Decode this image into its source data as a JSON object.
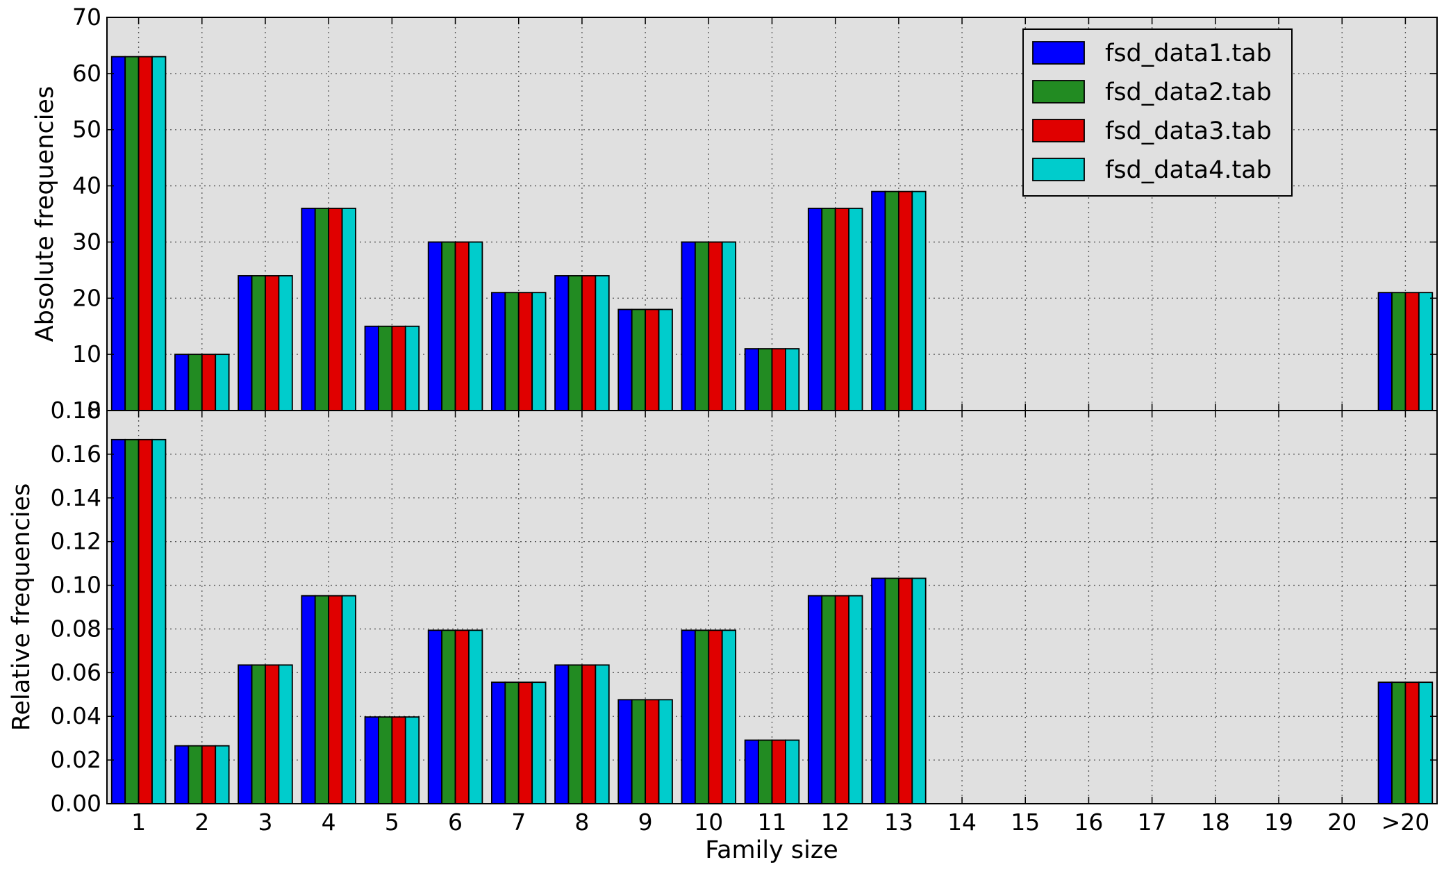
{
  "chart_data": {
    "type": "bar",
    "xlabel": "Family size",
    "categories": [
      "1",
      "2",
      "3",
      "4",
      "5",
      "6",
      "7",
      "8",
      "9",
      "10",
      "11",
      "12",
      "13",
      "14",
      "15",
      "16",
      "17",
      "18",
      "19",
      "20",
      ">20"
    ],
    "series_names": [
      "fsd_data1.tab",
      "fsd_data2.tab",
      "fsd_data3.tab",
      "fsd_data4.tab"
    ],
    "colors": [
      "#0000ff",
      "#228b22",
      "#e00000",
      "#00cccc"
    ],
    "background": "#e0e0e0",
    "grid": true,
    "legend_position": "top-right",
    "panels": [
      {
        "ylabel": "Absolute frequencies",
        "ylim": [
          0,
          70
        ],
        "yticks": [
          0,
          10,
          20,
          30,
          40,
          50,
          60,
          70
        ],
        "ytick_labels": [
          "0",
          "10",
          "20",
          "30",
          "40",
          "50",
          "60",
          "70"
        ],
        "series": [
          {
            "name": "fsd_data1.tab",
            "values": [
              63,
              10,
              24,
              36,
              15,
              30,
              21,
              24,
              18,
              30,
              11,
              36,
              39,
              0,
              0,
              0,
              0,
              0,
              0,
              0,
              21
            ]
          },
          {
            "name": "fsd_data2.tab",
            "values": [
              63,
              10,
              24,
              36,
              15,
              30,
              21,
              24,
              18,
              30,
              11,
              36,
              39,
              0,
              0,
              0,
              0,
              0,
              0,
              0,
              21
            ]
          },
          {
            "name": "fsd_data3.tab",
            "values": [
              63,
              10,
              24,
              36,
              15,
              30,
              21,
              24,
              18,
              30,
              11,
              36,
              39,
              0,
              0,
              0,
              0,
              0,
              0,
              0,
              21
            ]
          },
          {
            "name": "fsd_data4.tab",
            "values": [
              63,
              10,
              24,
              36,
              15,
              30,
              21,
              24,
              18,
              30,
              11,
              36,
              39,
              0,
              0,
              0,
              0,
              0,
              0,
              0,
              21
            ]
          }
        ]
      },
      {
        "ylabel": "Relative frequencies",
        "ylim": [
          0,
          0.18
        ],
        "yticks": [
          0,
          0.02,
          0.04,
          0.06,
          0.08,
          0.1,
          0.12,
          0.14,
          0.16,
          0.18
        ],
        "ytick_labels": [
          "0.00",
          "0.02",
          "0.04",
          "0.06",
          "0.08",
          "0.10",
          "0.12",
          "0.14",
          "0.16",
          "0.18"
        ],
        "series": [
          {
            "name": "fsd_data1.tab",
            "values": [
              0.1667,
              0.0265,
              0.0635,
              0.0952,
              0.0397,
              0.0794,
              0.0556,
              0.0635,
              0.0476,
              0.0794,
              0.0291,
              0.0952,
              0.1032,
              0,
              0,
              0,
              0,
              0,
              0,
              0,
              0.0556
            ]
          },
          {
            "name": "fsd_data2.tab",
            "values": [
              0.1667,
              0.0265,
              0.0635,
              0.0952,
              0.0397,
              0.0794,
              0.0556,
              0.0635,
              0.0476,
              0.0794,
              0.0291,
              0.0952,
              0.1032,
              0,
              0,
              0,
              0,
              0,
              0,
              0,
              0.0556
            ]
          },
          {
            "name": "fsd_data3.tab",
            "values": [
              0.1667,
              0.0265,
              0.0635,
              0.0952,
              0.0397,
              0.0794,
              0.0556,
              0.0635,
              0.0476,
              0.0794,
              0.0291,
              0.0952,
              0.1032,
              0,
              0,
              0,
              0,
              0,
              0,
              0,
              0.0556
            ]
          },
          {
            "name": "fsd_data4.tab",
            "values": [
              0.1667,
              0.0265,
              0.0635,
              0.0952,
              0.0397,
              0.0794,
              0.0556,
              0.0635,
              0.0476,
              0.0794,
              0.0291,
              0.0952,
              0.1032,
              0,
              0,
              0,
              0,
              0,
              0,
              0,
              0.0556
            ]
          }
        ]
      }
    ]
  }
}
